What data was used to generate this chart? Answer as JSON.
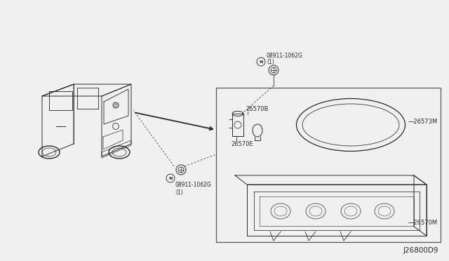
{
  "bg_color": "#f0f0f0",
  "line_color": "#2a2a2a",
  "diagram_id": "J26800D9",
  "parts": {
    "26570B": "26570B",
    "26570E": "26570E",
    "26573M": "26573M",
    "26570M": "26570M",
    "bolt1": "08911-1062G\n(1)",
    "bolt2": "08911-1062G\n(1)"
  },
  "font_size": 6.0,
  "lw": 0.7
}
